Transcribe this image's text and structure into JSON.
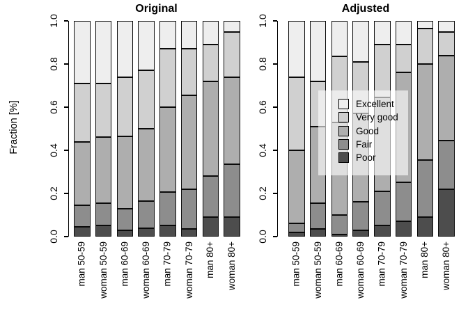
{
  "figure": {
    "ylab": "Fraction [%]",
    "y_ticks": [
      "0.0",
      "0.2",
      "0.4",
      "0.6",
      "0.8",
      "1.0"
    ],
    "palette": {
      "Excellent": "#eeeeee",
      "Very good": "#d0d0d0",
      "Good": "#aeaeae",
      "Fair": "#8d8d8d",
      "Poor": "#4d4d4d"
    },
    "segment_border_color": "#0a0a0a",
    "legend": {
      "items": [
        "Excellent",
        "Very good",
        "Good",
        "Fair",
        "Poor"
      ]
    }
  },
  "chart_data": [
    {
      "type": "bar",
      "stacked": true,
      "title": "Original",
      "ylabel": "Fraction [%]",
      "ylim": [
        0,
        1
      ],
      "grid": false,
      "categories": [
        "man 50-59",
        "woman 50-59",
        "man 60-69",
        "woman 60-69",
        "man 70-79",
        "woman 70-79",
        "man 80+",
        "woman 80+"
      ],
      "series": [
        {
          "name": "Poor",
          "values": [
            0.045,
            0.05,
            0.03,
            0.04,
            0.05,
            0.035,
            0.09,
            0.09
          ]
        },
        {
          "name": "Fair",
          "values": [
            0.1,
            0.105,
            0.1,
            0.125,
            0.155,
            0.185,
            0.19,
            0.245
          ]
        },
        {
          "name": "Good",
          "values": [
            0.295,
            0.305,
            0.335,
            0.335,
            0.395,
            0.435,
            0.44,
            0.405
          ]
        },
        {
          "name": "Very good",
          "values": [
            0.27,
            0.25,
            0.275,
            0.27,
            0.27,
            0.215,
            0.17,
            0.21
          ]
        },
        {
          "name": "Excellent",
          "values": [
            0.29,
            0.29,
            0.26,
            0.23,
            0.13,
            0.13,
            0.11,
            0.05
          ]
        }
      ]
    },
    {
      "type": "bar",
      "stacked": true,
      "title": "Adjusted",
      "ylabel": "Fraction [%]",
      "ylim": [
        0,
        1
      ],
      "grid": false,
      "legend_position": "inside-middle",
      "categories": [
        "man 50-59",
        "woman 50-59",
        "man 60-69",
        "woman 60-69",
        "man 70-79",
        "woman 70-79",
        "man 80+",
        "woman 80+"
      ],
      "series": [
        {
          "name": "Poor",
          "values": [
            0.02,
            0.035,
            0.01,
            0.03,
            0.05,
            0.07,
            0.09,
            0.22
          ]
        },
        {
          "name": "Fair",
          "values": [
            0.04,
            0.12,
            0.09,
            0.13,
            0.16,
            0.18,
            0.265,
            0.225
          ]
        },
        {
          "name": "Good",
          "values": [
            0.34,
            0.355,
            0.43,
            0.41,
            0.435,
            0.51,
            0.445,
            0.395
          ]
        },
        {
          "name": "Very good",
          "values": [
            0.34,
            0.21,
            0.305,
            0.24,
            0.245,
            0.13,
            0.165,
            0.11
          ]
        },
        {
          "name": "Excellent",
          "values": [
            0.26,
            0.28,
            0.165,
            0.19,
            0.11,
            0.11,
            0.035,
            0.05
          ]
        }
      ]
    }
  ]
}
